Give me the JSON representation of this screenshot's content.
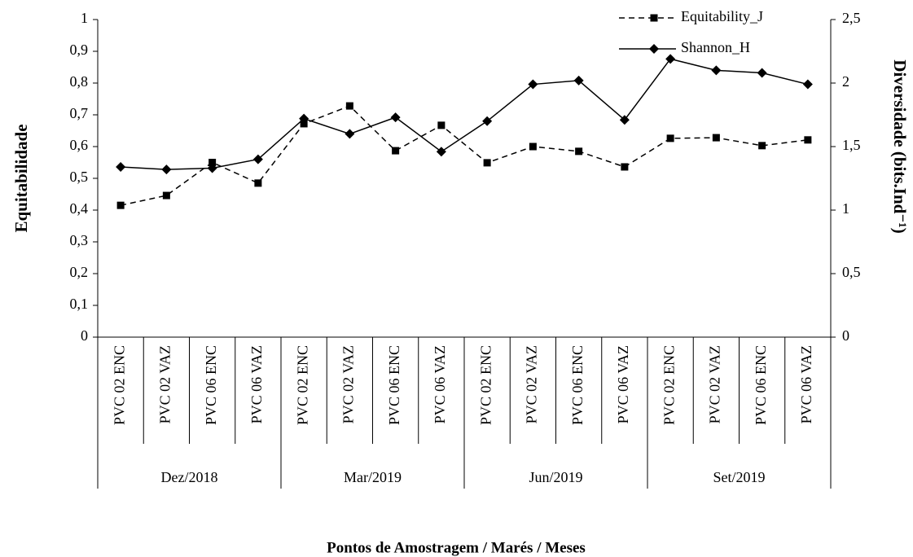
{
  "chart_data": {
    "type": "line",
    "y_label": "Equitabilidade",
    "y2_label": "Diversidade (bits.Ind⁻¹)",
    "x_label": "Pontos de Amostragem / Marés / Meses",
    "categories": [
      "PVC 02 ENC",
      "PVC 02 VAZ",
      "PVC 06 ENC",
      "PVC 06 VAZ",
      "PVC 02 ENC",
      "PVC 02 VAZ",
      "PVC 06 ENC",
      "PVC 06 VAZ",
      "PVC 02 ENC",
      "PVC 02 VAZ",
      "PVC 06 ENC",
      "PVC 06 VAZ",
      "PVC 02 ENC",
      "PVC 02 VAZ",
      "PVC 06 ENC",
      "PVC 06 VAZ"
    ],
    "category_groups": [
      "Dez/2018",
      "Mar/2019",
      "Jun/2019",
      "Set/2019"
    ],
    "series": [
      {
        "name": "Equitability_J",
        "color": "#000000",
        "style": "dashed",
        "marker": "square",
        "axis": "y",
        "values": [
          0.415,
          0.446,
          0.55,
          0.485,
          0.672,
          0.728,
          0.587,
          0.667,
          0.549,
          0.6,
          0.585,
          0.536,
          0.626,
          0.628,
          0.603,
          0.621
        ]
      },
      {
        "name": "Shannon_H",
        "color": "#000000",
        "style": "solid",
        "marker": "diamond",
        "axis": "y2",
        "values": [
          1.34,
          1.32,
          1.33,
          1.4,
          1.72,
          1.6,
          1.73,
          1.46,
          1.7,
          1.99,
          2.02,
          1.71,
          2.19,
          2.1,
          2.08,
          1.99
        ]
      }
    ],
    "ylim": [
      0,
      1
    ],
    "yticks": [
      0,
      {
        "value": 0.1,
        "label": "0,1"
      },
      {
        "value": 0.2,
        "label": "0,2"
      },
      {
        "value": 0.3,
        "label": "0,3"
      },
      {
        "value": 0.4,
        "label": "0,4"
      },
      {
        "value": 0.5,
        "label": "0,5"
      },
      {
        "value": 0.6,
        "label": "0,6"
      },
      {
        "value": 0.7,
        "label": "0,7"
      },
      {
        "value": 0.8,
        "label": "0,8"
      },
      {
        "value": 0.9,
        "label": "0,9"
      },
      1
    ],
    "y2lim": [
      0,
      2.5
    ],
    "y2ticks": [
      0,
      {
        "value": 0.5,
        "label": "0,5"
      },
      1,
      {
        "value": 1.5,
        "label": "1,5"
      },
      2,
      {
        "value": 2.5,
        "label": "2,5"
      }
    ],
    "grid": false,
    "legend": "top-right"
  }
}
